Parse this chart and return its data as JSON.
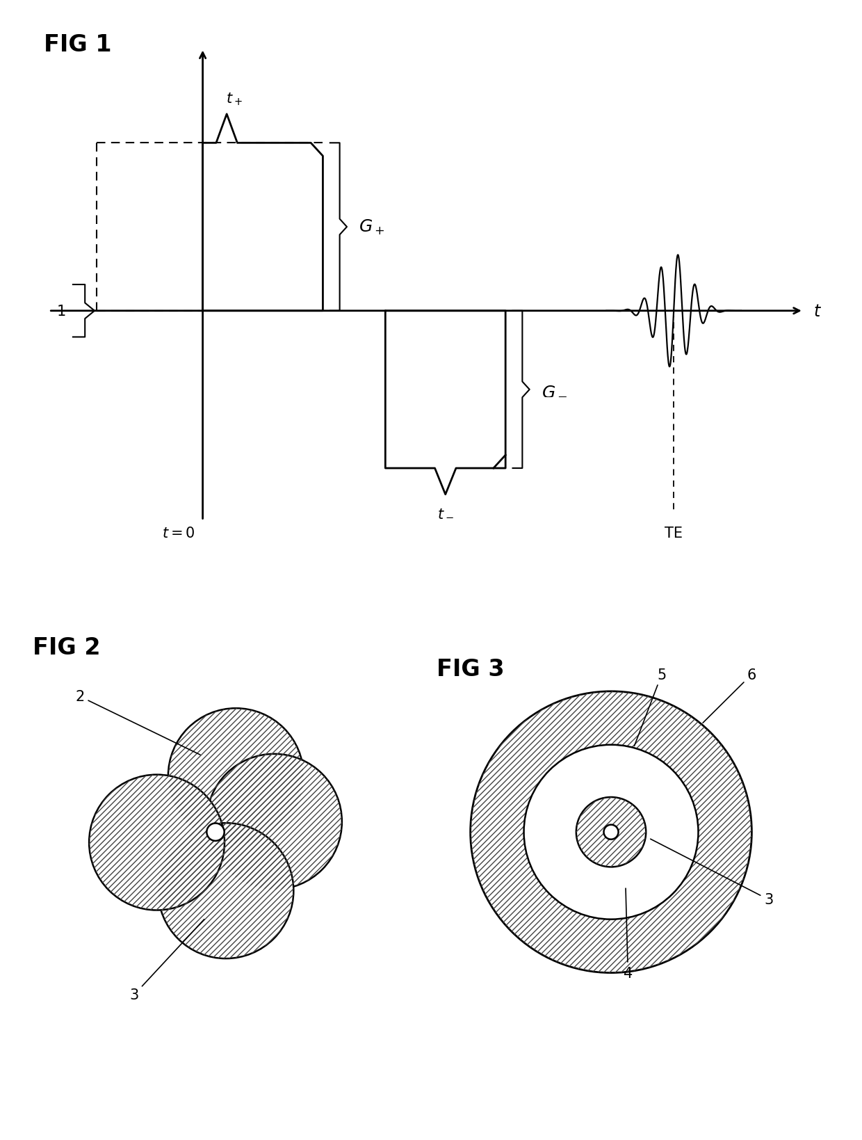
{
  "background_color": "#ffffff",
  "fig_width": 12.4,
  "fig_height": 16.4,
  "fig1_label": "FIG 1",
  "fig2_label": "FIG 2",
  "fig3_label": "FIG 3",
  "line_color": "#000000",
  "hatch_pattern": "////",
  "annotation_fontsize": 15,
  "fig_label_fontsize": 24
}
